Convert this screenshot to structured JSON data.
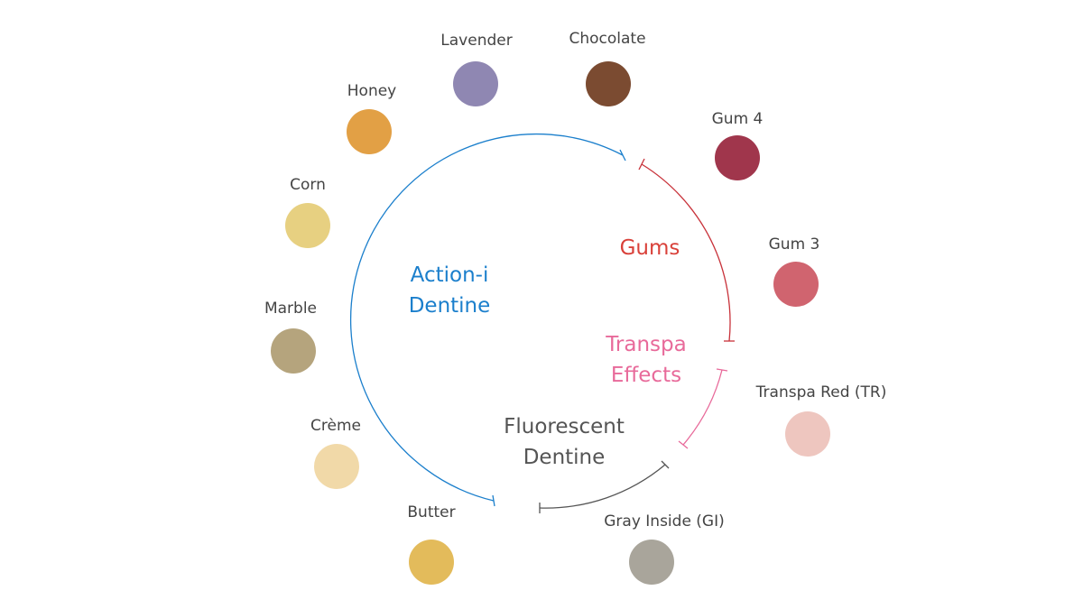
{
  "groups": {
    "action_i": {
      "line1": "Action-i",
      "line2": "Dentine",
      "color": "#1b7fcc"
    },
    "gums": {
      "line1": "Gums",
      "color": "#d9413a"
    },
    "transpa": {
      "line1": "Transpa",
      "line2": "Effects",
      "color": "#e86a9a"
    },
    "fluorescent": {
      "line1": "Fluorescent",
      "line2": "Dentine",
      "color": "#555555"
    }
  },
  "shades": [
    {
      "name": "Lavender",
      "color": "#8f87b2"
    },
    {
      "name": "Chocolate",
      "color": "#7b4b31"
    },
    {
      "name": "Gum 4",
      "color": "#a0364c"
    },
    {
      "name": "Gum 3",
      "color": "#d0646f"
    },
    {
      "name": "Transpa Red (TR)",
      "color": "#eec6bf"
    },
    {
      "name": "Gray Inside (GI)",
      "color": "#a9a59b"
    },
    {
      "name": "Butter",
      "color": "#e3bb5b"
    },
    {
      "name": "Crème",
      "color": "#f1d9a8"
    },
    {
      "name": "Marble",
      "color": "#b5a47d"
    },
    {
      "name": "Corn",
      "color": "#e7d081"
    },
    {
      "name": "Honey",
      "color": "#e2a045"
    }
  ]
}
